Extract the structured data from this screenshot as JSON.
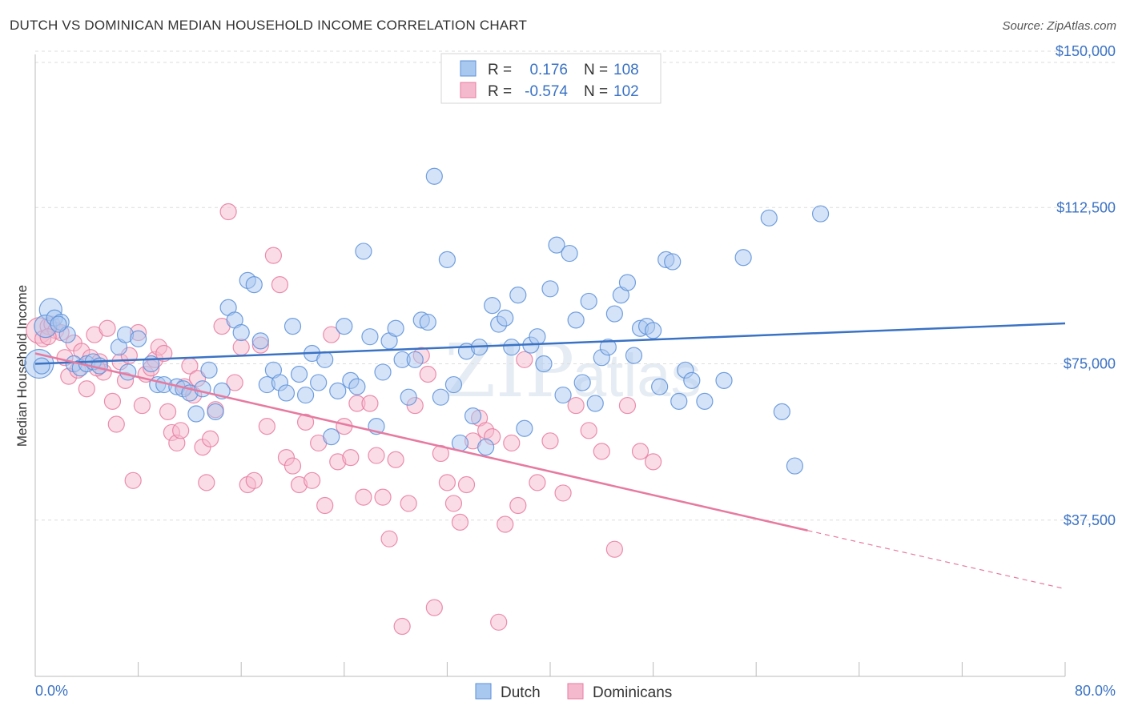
{
  "header": {
    "title": "DUTCH VS DOMINICAN MEDIAN HOUSEHOLD INCOME CORRELATION CHART",
    "source": "Source: ZipAtlas.com"
  },
  "colors": {
    "dutch": "#5b8fd9",
    "dutch_fill": "#a9c8ef",
    "dominicans": "#e77aa0",
    "dominicans_fill": "#f5b9cd",
    "tick_text": "#3a72c4",
    "grid": "#dddddd"
  },
  "watermark": {
    "zip": "ZIP",
    "atlas": "atlas"
  },
  "stats_legend": {
    "rows": [
      {
        "r_label": "R =",
        "r_value": "0.176",
        "n_label": "N =",
        "n_value": "108"
      },
      {
        "r_label": "R =",
        "r_value": "-0.574",
        "n_label": "N =",
        "n_value": "102"
      }
    ]
  },
  "chart_data": {
    "type": "scatter",
    "title": "DUTCH VS DOMINICAN MEDIAN HOUSEHOLD INCOME CORRELATION CHART",
    "ylabel": "Median Household Income",
    "xlabel": "",
    "xlim": [
      0,
      80
    ],
    "ylim": [
      0,
      155000
    ],
    "x_tick_labels": [
      "0.0%",
      "80.0%"
    ],
    "y_ticks": [
      {
        "value": 37500,
        "label": "$37,500"
      },
      {
        "value": 75000,
        "label": "$75,000"
      },
      {
        "value": 112500,
        "label": "$112,500"
      },
      {
        "value": 150000,
        "label": "$150,000"
      }
    ],
    "grid": true,
    "legend_position": "bottom",
    "series": [
      {
        "name": "Dutch",
        "r": 0.176,
        "n": 108,
        "trend": {
          "x": [
            0,
            80
          ],
          "y": [
            75000,
            84700
          ]
        },
        "points": [
          [
            0.3,
            75000
          ],
          [
            1.2,
            88000
          ],
          [
            0.8,
            84000
          ],
          [
            1.5,
            86000
          ],
          [
            2.0,
            85000
          ],
          [
            2.5,
            82000
          ],
          [
            3.0,
            75000
          ],
          [
            3.5,
            74000
          ],
          [
            4.0,
            75000
          ],
          [
            4.5,
            75500
          ],
          [
            5.0,
            74500
          ],
          [
            6.5,
            79000
          ],
          [
            7.0,
            82000
          ],
          [
            7.2,
            73000
          ],
          [
            8.0,
            81000
          ],
          [
            9.0,
            75000
          ],
          [
            9.5,
            70000
          ],
          [
            10.0,
            70000
          ],
          [
            11.0,
            69500
          ],
          [
            11.5,
            69000
          ],
          [
            12.0,
            68000
          ],
          [
            12.5,
            63000
          ],
          [
            13.0,
            69000
          ],
          [
            13.5,
            73500
          ],
          [
            14.0,
            63500
          ],
          [
            14.5,
            68500
          ],
          [
            15.0,
            88500
          ],
          [
            15.5,
            85500
          ],
          [
            16.0,
            82500
          ],
          [
            16.5,
            95000
          ],
          [
            17.0,
            94000
          ],
          [
            17.5,
            80500
          ],
          [
            18.0,
            70000
          ],
          [
            18.5,
            73500
          ],
          [
            19.0,
            70500
          ],
          [
            19.5,
            68000
          ],
          [
            20.0,
            84000
          ],
          [
            20.5,
            72500
          ],
          [
            21.0,
            67500
          ],
          [
            21.5,
            77500
          ],
          [
            22.0,
            70500
          ],
          [
            22.5,
            76000
          ],
          [
            23.0,
            57500
          ],
          [
            23.5,
            68500
          ],
          [
            24.0,
            84000
          ],
          [
            24.5,
            71000
          ],
          [
            25.0,
            69500
          ],
          [
            25.5,
            102000
          ],
          [
            26.0,
            81500
          ],
          [
            26.5,
            60000
          ],
          [
            27.0,
            73000
          ],
          [
            27.5,
            80500
          ],
          [
            28.0,
            83500
          ],
          [
            28.5,
            76000
          ],
          [
            29.0,
            67000
          ],
          [
            29.5,
            76000
          ],
          [
            30.0,
            85500
          ],
          [
            30.5,
            85000
          ],
          [
            31.0,
            120000
          ],
          [
            31.5,
            67000
          ],
          [
            32.0,
            100000
          ],
          [
            32.5,
            70000
          ],
          [
            33.0,
            56000
          ],
          [
            33.5,
            78000
          ],
          [
            34.0,
            62500
          ],
          [
            34.5,
            79000
          ],
          [
            35.0,
            55000
          ],
          [
            35.5,
            89000
          ],
          [
            36.0,
            84500
          ],
          [
            36.5,
            86000
          ],
          [
            37.0,
            79000
          ],
          [
            37.5,
            91500
          ],
          [
            38.0,
            59500
          ],
          [
            38.5,
            79500
          ],
          [
            39.0,
            81500
          ],
          [
            39.5,
            75000
          ],
          [
            40.0,
            93000
          ],
          [
            40.5,
            103500
          ],
          [
            41.0,
            67500
          ],
          [
            41.5,
            101500
          ],
          [
            42.0,
            85500
          ],
          [
            42.5,
            70500
          ],
          [
            43.0,
            90000
          ],
          [
            43.5,
            65500
          ],
          [
            44.0,
            76500
          ],
          [
            44.5,
            79000
          ],
          [
            45.0,
            87000
          ],
          [
            45.5,
            91500
          ],
          [
            46.0,
            94500
          ],
          [
            46.5,
            77000
          ],
          [
            47.0,
            83500
          ],
          [
            47.5,
            84000
          ],
          [
            48.0,
            83000
          ],
          [
            48.5,
            69500
          ],
          [
            49.0,
            100000
          ],
          [
            49.5,
            99500
          ],
          [
            50.0,
            66000
          ],
          [
            50.5,
            73500
          ],
          [
            51.0,
            71000
          ],
          [
            52.0,
            66000
          ],
          [
            53.5,
            71000
          ],
          [
            55.0,
            100500
          ],
          [
            57.0,
            110000
          ],
          [
            58.0,
            63500
          ],
          [
            59.0,
            50500
          ],
          [
            61.0,
            111000
          ],
          [
            0.5,
            74500
          ],
          [
            1.8,
            84500
          ]
        ]
      },
      {
        "name": "Dominicans",
        "r": -0.574,
        "n": 102,
        "trend": {
          "x": [
            0,
            60
          ],
          "y": [
            77500,
            35000
          ],
          "dashed_to": {
            "x": 80,
            "y": 21000
          }
        },
        "points": [
          [
            0.3,
            83000
          ],
          [
            0.6,
            81000
          ],
          [
            1.0,
            84000
          ],
          [
            1.3,
            84500
          ],
          [
            1.6,
            83000
          ],
          [
            2.0,
            82500
          ],
          [
            2.3,
            76500
          ],
          [
            2.6,
            72000
          ],
          [
            3.0,
            80000
          ],
          [
            3.3,
            73500
          ],
          [
            3.6,
            78000
          ],
          [
            4.0,
            69000
          ],
          [
            4.3,
            76500
          ],
          [
            4.6,
            82000
          ],
          [
            5.0,
            75500
          ],
          [
            5.3,
            73000
          ],
          [
            5.6,
            83500
          ],
          [
            6.0,
            66000
          ],
          [
            6.3,
            60500
          ],
          [
            6.6,
            75500
          ],
          [
            7.0,
            71000
          ],
          [
            7.3,
            77000
          ],
          [
            7.6,
            47000
          ],
          [
            8.0,
            82500
          ],
          [
            8.3,
            65000
          ],
          [
            8.6,
            72500
          ],
          [
            9.0,
            74000
          ],
          [
            9.3,
            76000
          ],
          [
            9.6,
            79000
          ],
          [
            10.0,
            77500
          ],
          [
            10.3,
            63500
          ],
          [
            10.6,
            58500
          ],
          [
            11.0,
            56000
          ],
          [
            11.3,
            59000
          ],
          [
            11.6,
            69500
          ],
          [
            12.0,
            74500
          ],
          [
            12.3,
            67500
          ],
          [
            12.6,
            71500
          ],
          [
            13.0,
            55000
          ],
          [
            13.3,
            46500
          ],
          [
            13.6,
            57000
          ],
          [
            14.0,
            64000
          ],
          [
            14.5,
            84000
          ],
          [
            15.0,
            111500
          ],
          [
            15.5,
            70500
          ],
          [
            16.0,
            79000
          ],
          [
            16.5,
            46000
          ],
          [
            17.0,
            47000
          ],
          [
            17.5,
            79500
          ],
          [
            18.0,
            60000
          ],
          [
            18.5,
            101000
          ],
          [
            19.0,
            94000
          ],
          [
            19.5,
            52500
          ],
          [
            20.0,
            50500
          ],
          [
            20.5,
            46000
          ],
          [
            21.0,
            61000
          ],
          [
            21.5,
            47000
          ],
          [
            22.0,
            56000
          ],
          [
            22.5,
            41000
          ],
          [
            23.0,
            82000
          ],
          [
            23.5,
            51500
          ],
          [
            24.0,
            60000
          ],
          [
            24.5,
            52500
          ],
          [
            25.0,
            65500
          ],
          [
            25.5,
            43000
          ],
          [
            26.0,
            65500
          ],
          [
            26.5,
            53000
          ],
          [
            27.0,
            43000
          ],
          [
            27.5,
            33000
          ],
          [
            28.0,
            52000
          ],
          [
            28.5,
            12000
          ],
          [
            29.0,
            41500
          ],
          [
            29.5,
            65000
          ],
          [
            30.0,
            77000
          ],
          [
            30.5,
            72500
          ],
          [
            31.0,
            16500
          ],
          [
            31.5,
            53500
          ],
          [
            32.0,
            46500
          ],
          [
            32.5,
            41500
          ],
          [
            33.0,
            37000
          ],
          [
            33.5,
            46000
          ],
          [
            34.0,
            56500
          ],
          [
            34.5,
            62000
          ],
          [
            35.0,
            59000
          ],
          [
            35.5,
            57500
          ],
          [
            36.0,
            13000
          ],
          [
            36.5,
            36500
          ],
          [
            37.0,
            56000
          ],
          [
            37.5,
            41000
          ],
          [
            38.0,
            76000
          ],
          [
            39.0,
            46500
          ],
          [
            40.0,
            56500
          ],
          [
            41.0,
            44000
          ],
          [
            42.0,
            65000
          ],
          [
            43.0,
            59000
          ],
          [
            44.0,
            54000
          ],
          [
            45.0,
            30500
          ],
          [
            46.0,
            65000
          ],
          [
            47.0,
            54000
          ],
          [
            48.0,
            51500
          ],
          [
            4.8,
            74000
          ],
          [
            1.0,
            81500
          ]
        ]
      }
    ]
  },
  "bottom_legend": {
    "items": [
      {
        "label": "Dutch"
      },
      {
        "label": "Dominicans"
      }
    ]
  }
}
